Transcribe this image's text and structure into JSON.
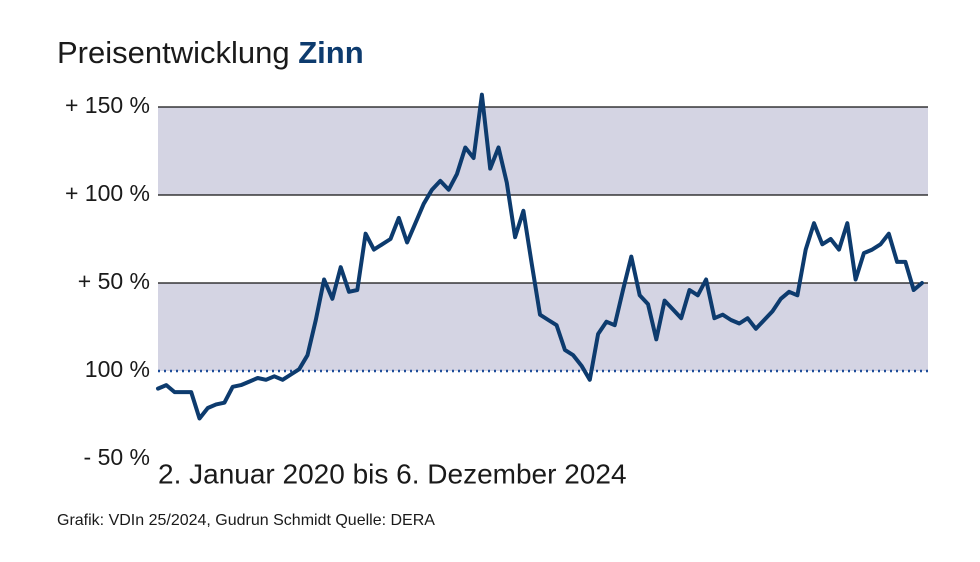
{
  "chart_data": {
    "type": "line",
    "title": "Preisentwicklung",
    "title_emphasis": "Zinn",
    "subtitle": "2. Januar 2020 bis 6. Dezember 2024",
    "footer": "Grafik: VDIn 25/2024, Gudrun Schmidt Quelle: DERA",
    "ylim": [
      -50,
      150
    ],
    "yticks": [
      {
        "value": -50,
        "label": "- 50 %"
      },
      {
        "value": 0,
        "label": "100 %"
      },
      {
        "value": 50,
        "label": "+ 50 %"
      },
      {
        "value": 100,
        "label": "+ 100 %"
      },
      {
        "value": 150,
        "label": "+ 150 %"
      }
    ],
    "band_color": "#d4d4e3",
    "grid": true,
    "series": [
      {
        "color": "#0d3b6e",
        "values": [
          -10,
          -8,
          -12,
          -12,
          -12,
          -27,
          -21,
          -19,
          -18,
          -9,
          -8,
          -6,
          -4,
          -5,
          -3,
          -5,
          -2,
          1,
          9,
          29,
          52,
          41,
          59,
          45,
          46,
          78,
          69,
          72,
          75,
          87,
          73,
          84,
          95,
          103,
          108,
          103,
          112,
          127,
          121,
          157,
          115,
          127,
          107,
          76,
          91,
          61,
          32,
          29,
          26,
          12,
          9,
          3,
          -5,
          21,
          28,
          26,
          46,
          65,
          43,
          38,
          18,
          40,
          35,
          30,
          46,
          43,
          52,
          30,
          32,
          29,
          27,
          30,
          24,
          29,
          34,
          41,
          45,
          43,
          69,
          84,
          72,
          75,
          69,
          84,
          52,
          67,
          69,
          72,
          78,
          62,
          62,
          46,
          50
        ]
      }
    ]
  }
}
